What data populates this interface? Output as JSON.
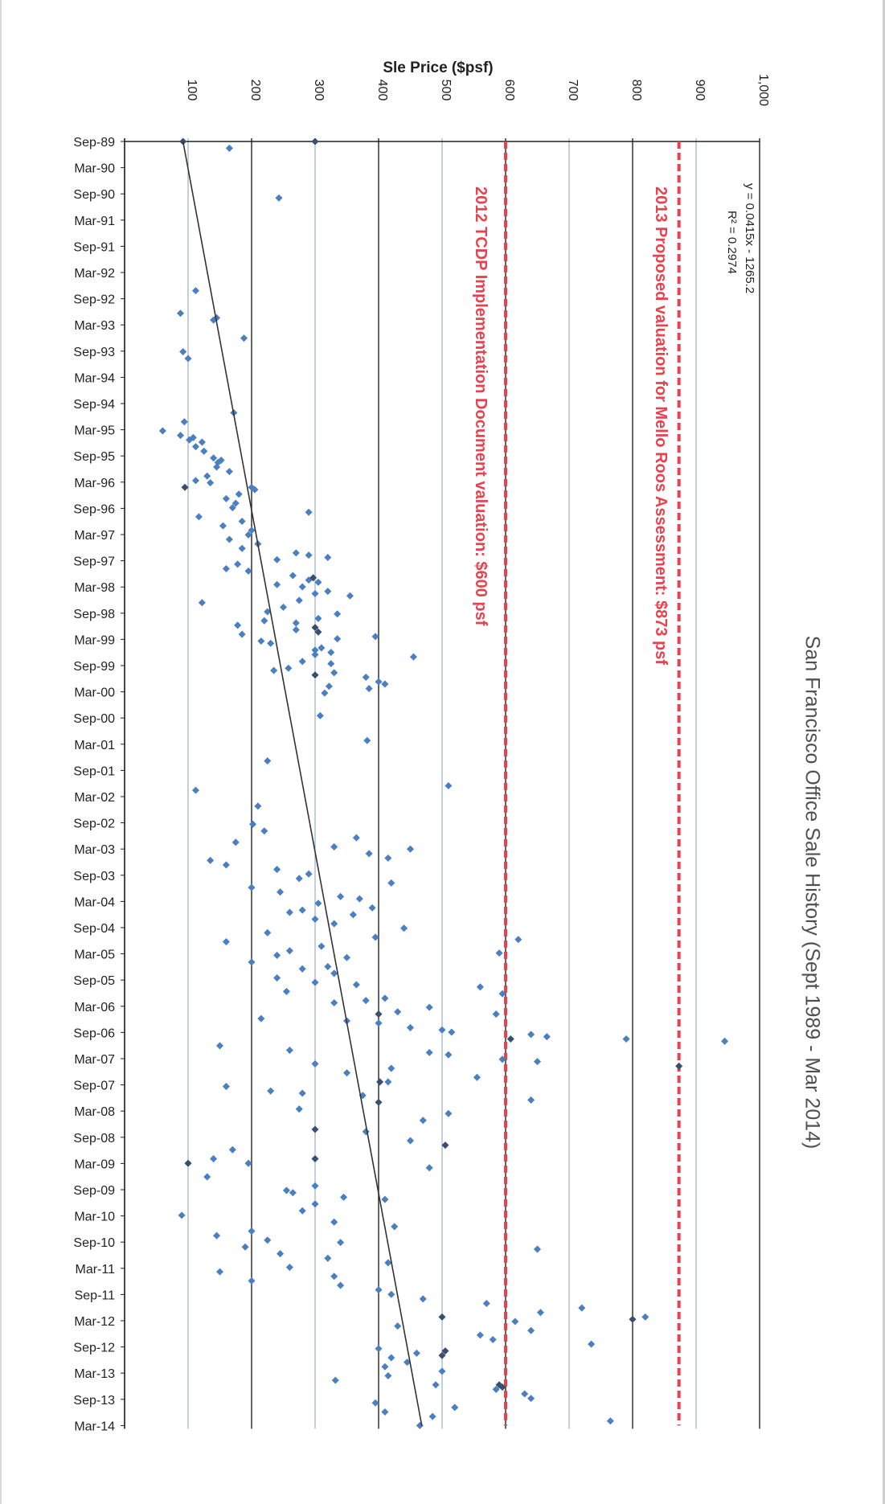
{
  "chart_data": {
    "type": "scatter",
    "title": "San Francisco Office Sale History (Sept 1989 - Mar 2014)",
    "ylabel": "Sle Price ($psf)",
    "xlabel": "",
    "ylim": [
      0,
      1000
    ],
    "yticks": [
      "",
      "100",
      "200",
      "300",
      "400",
      "500",
      "600",
      "700",
      "800",
      "900",
      "1,000"
    ],
    "ytick_values": [
      0,
      100,
      200,
      300,
      400,
      500,
      600,
      700,
      800,
      900,
      1000
    ],
    "categories": [
      "Sep-89",
      "Mar-90",
      "Sep-90",
      "Mar-91",
      "Sep-91",
      "Mar-92",
      "Sep-92",
      "Mar-93",
      "Sep-93",
      "Mar-94",
      "Sep-94",
      "Mar-95",
      "Sep-95",
      "Mar-96",
      "Sep-96",
      "Mar-97",
      "Sep-97",
      "Mar-98",
      "Sep-98",
      "Mar-99",
      "Sep-99",
      "Mar-00",
      "Sep-00",
      "Mar-01",
      "Sep-01",
      "Mar-02",
      "Sep-02",
      "Mar-03",
      "Sep-03",
      "Mar-04",
      "Sep-04",
      "Mar-05",
      "Sep-05",
      "Mar-06",
      "Sep-06",
      "Mar-07",
      "Sep-07",
      "Mar-08",
      "Sep-08",
      "Mar-09",
      "Sep-09",
      "Mar-10",
      "Sep-10",
      "Mar-11",
      "Sep-11",
      "Mar-12",
      "Sep-12",
      "Mar-13",
      "Sep-13",
      "Mar-14"
    ],
    "trendline": {
      "equation": "y = 0.0415x - 1265.2",
      "r_squared": "R² = 0.2974",
      "start": [
        0,
        92
      ],
      "end": [
        49,
        468
      ]
    },
    "reference_lines": [
      {
        "value": 600,
        "label": "2012 TCDP Implementation Document valuation: $600 psf",
        "color": "#e8424f"
      },
      {
        "value": 873,
        "label": "2013 Proposed valuation for Mello Roos Assessment: $873 psf",
        "color": "#e8424f"
      }
    ],
    "series": [
      {
        "color": "#4a7fc1",
        "points": [
          [
            0.3,
            165
          ],
          [
            2.5,
            243
          ],
          [
            6.6,
            112
          ],
          [
            7.6,
            88
          ],
          [
            7.8,
            145
          ],
          [
            7.9,
            140
          ],
          [
            8.7,
            188
          ],
          [
            9.3,
            92
          ],
          [
            9.6,
            100
          ],
          [
            12.0,
            172
          ],
          [
            12.4,
            94
          ],
          [
            12.8,
            60
          ],
          [
            13.0,
            88
          ],
          [
            13.1,
            108
          ],
          [
            13.2,
            102
          ],
          [
            13.3,
            122
          ],
          [
            13.5,
            112
          ],
          [
            13.7,
            125
          ],
          [
            14.0,
            140
          ],
          [
            14.1,
            152
          ],
          [
            14.2,
            147
          ],
          [
            14.4,
            145
          ],
          [
            14.6,
            165
          ],
          [
            14.8,
            130
          ],
          [
            15.0,
            112
          ],
          [
            15.1,
            135
          ],
          [
            15.3,
            200
          ],
          [
            15.4,
            205
          ],
          [
            15.6,
            180
          ],
          [
            15.8,
            160
          ],
          [
            16.0,
            175
          ],
          [
            16.2,
            170
          ],
          [
            16.4,
            290
          ],
          [
            16.6,
            117
          ],
          [
            16.8,
            185
          ],
          [
            17.0,
            155
          ],
          [
            17.2,
            200
          ],
          [
            17.4,
            195
          ],
          [
            17.6,
            165
          ],
          [
            17.8,
            210
          ],
          [
            18.0,
            185
          ],
          [
            18.2,
            270
          ],
          [
            18.3,
            290
          ],
          [
            18.4,
            320
          ],
          [
            18.5,
            240
          ],
          [
            18.7,
            178
          ],
          [
            18.9,
            160
          ],
          [
            19.0,
            195
          ],
          [
            19.2,
            265
          ],
          [
            19.4,
            290
          ],
          [
            19.5,
            305
          ],
          [
            19.6,
            240
          ],
          [
            19.7,
            280
          ],
          [
            19.9,
            320
          ],
          [
            20.0,
            300
          ],
          [
            20.1,
            355
          ],
          [
            20.3,
            275
          ],
          [
            20.4,
            122
          ],
          [
            20.6,
            250
          ],
          [
            20.8,
            225
          ],
          [
            20.9,
            335
          ],
          [
            21.1,
            305
          ],
          [
            21.2,
            220
          ],
          [
            21.3,
            270
          ],
          [
            21.4,
            178
          ],
          [
            21.6,
            270
          ],
          [
            21.8,
            185
          ],
          [
            21.9,
            395
          ],
          [
            22.0,
            335
          ],
          [
            22.1,
            215
          ],
          [
            22.2,
            230
          ],
          [
            22.4,
            310
          ],
          [
            22.5,
            300
          ],
          [
            22.6,
            325
          ],
          [
            22.7,
            300
          ],
          [
            22.8,
            455
          ],
          [
            23.0,
            280
          ],
          [
            23.1,
            325
          ],
          [
            23.3,
            258
          ],
          [
            23.4,
            235
          ],
          [
            23.5,
            330
          ],
          [
            23.7,
            380
          ],
          [
            23.9,
            400
          ],
          [
            24.0,
            410
          ],
          [
            24.1,
            322
          ],
          [
            24.2,
            385
          ],
          [
            24.4,
            315
          ],
          [
            25.4,
            308
          ],
          [
            26.5,
            382
          ],
          [
            27.4,
            225
          ],
          [
            28.5,
            510
          ],
          [
            28.7,
            112
          ],
          [
            29.4,
            210
          ],
          [
            30.2,
            202
          ],
          [
            30.5,
            220
          ],
          [
            30.8,
            365
          ],
          [
            31.0,
            175
          ],
          [
            31.2,
            330
          ],
          [
            31.3,
            450
          ],
          [
            31.5,
            385
          ],
          [
            31.7,
            415
          ],
          [
            31.8,
            135
          ],
          [
            32.0,
            160
          ],
          [
            32.2,
            240
          ],
          [
            32.4,
            290
          ],
          [
            32.6,
            275
          ],
          [
            32.8,
            420
          ],
          [
            33.0,
            200
          ],
          [
            33.2,
            245
          ],
          [
            33.4,
            340
          ],
          [
            33.5,
            370
          ],
          [
            33.7,
            305
          ],
          [
            33.9,
            390
          ],
          [
            34.0,
            280
          ],
          [
            34.1,
            260
          ],
          [
            34.2,
            360
          ],
          [
            34.4,
            300
          ],
          [
            34.6,
            330
          ],
          [
            34.8,
            440
          ],
          [
            35.0,
            225
          ],
          [
            35.2,
            395
          ],
          [
            35.3,
            620
          ],
          [
            35.4,
            160
          ],
          [
            35.6,
            310
          ],
          [
            35.8,
            260
          ],
          [
            35.9,
            590
          ],
          [
            36.0,
            240
          ],
          [
            36.1,
            350
          ],
          [
            36.3,
            200
          ],
          [
            36.5,
            320
          ],
          [
            36.6,
            280
          ],
          [
            36.8,
            330
          ],
          [
            37.0,
            240
          ],
          [
            37.2,
            300
          ],
          [
            37.3,
            365
          ],
          [
            37.4,
            560
          ],
          [
            37.6,
            255
          ],
          [
            37.7,
            595
          ],
          [
            37.9,
            410
          ],
          [
            38.0,
            380
          ],
          [
            38.1,
            330
          ],
          [
            38.3,
            480
          ],
          [
            38.5,
            430
          ],
          [
            38.6,
            585
          ],
          [
            38.8,
            215
          ],
          [
            38.9,
            350
          ],
          [
            39.0,
            400
          ],
          [
            39.2,
            450
          ],
          [
            39.3,
            500
          ],
          [
            39.4,
            515
          ],
          [
            39.5,
            640
          ],
          [
            39.6,
            665
          ],
          [
            39.7,
            790
          ],
          [
            39.8,
            945
          ],
          [
            40.0,
            150
          ],
          [
            40.2,
            260
          ],
          [
            40.3,
            480
          ],
          [
            40.4,
            510
          ],
          [
            40.6,
            595
          ],
          [
            40.7,
            650
          ],
          [
            40.8,
            300
          ],
          [
            41.0,
            420
          ],
          [
            41.2,
            350
          ],
          [
            41.4,
            555
          ],
          [
            41.6,
            415
          ],
          [
            41.8,
            160
          ],
          [
            42.0,
            230
          ],
          [
            42.1,
            280
          ],
          [
            42.2,
            375
          ],
          [
            42.4,
            640
          ],
          [
            42.8,
            275
          ],
          [
            43.0,
            510
          ],
          [
            43.3,
            470
          ],
          [
            43.8,
            380
          ],
          [
            44.2,
            450
          ],
          [
            44.6,
            170
          ],
          [
            45.0,
            140
          ],
          [
            45.2,
            195
          ],
          [
            45.4,
            480
          ],
          [
            45.8,
            130
          ],
          [
            46.2,
            300
          ],
          [
            46.4,
            255
          ],
          [
            46.5,
            265
          ],
          [
            46.7,
            345
          ],
          [
            46.8,
            410
          ],
          [
            47.0,
            300
          ],
          [
            47.3,
            280
          ],
          [
            47.5,
            90
          ],
          [
            47.8,
            330
          ],
          [
            48.0,
            425
          ],
          [
            48.2,
            200
          ],
          [
            48.4,
            145
          ],
          [
            48.6,
            225
          ],
          [
            48.7,
            340
          ],
          [
            48.9,
            190
          ],
          [
            49.0,
            650
          ],
          [
            49.2,
            245
          ],
          [
            49.4,
            320
          ],
          [
            49.6,
            415
          ],
          [
            49.8,
            260
          ],
          [
            50.0,
            150
          ],
          [
            50.2,
            330
          ],
          [
            50.4,
            200
          ],
          [
            50.6,
            340
          ],
          [
            50.8,
            400
          ],
          [
            51.0,
            420
          ],
          [
            51.2,
            470
          ],
          [
            51.4,
            570
          ],
          [
            51.6,
            720
          ],
          [
            51.8,
            655
          ],
          [
            52.0,
            820
          ],
          [
            52.2,
            615
          ],
          [
            52.4,
            430
          ],
          [
            52.6,
            640
          ],
          [
            52.8,
            560
          ],
          [
            53.0,
            580
          ],
          [
            53.2,
            735
          ],
          [
            53.4,
            400
          ],
          [
            53.6,
            460
          ],
          [
            53.8,
            420
          ],
          [
            54.0,
            445
          ],
          [
            54.2,
            410
          ],
          [
            54.4,
            500
          ],
          [
            54.6,
            415
          ],
          [
            54.8,
            332
          ],
          [
            55.0,
            490
          ],
          [
            55.2,
            585
          ],
          [
            55.4,
            630
          ],
          [
            55.6,
            640
          ],
          [
            55.8,
            395
          ],
          [
            56.0,
            520
          ],
          [
            56.2,
            410
          ],
          [
            56.4,
            485
          ],
          [
            56.6,
            765
          ],
          [
            56.8,
            465
          ]
        ]
      },
      {
        "color": "#3a4f6e",
        "points": [
          [
            0.0,
            92
          ],
          [
            0.0,
            300
          ],
          [
            15.3,
            95
          ],
          [
            19.3,
            297
          ],
          [
            21.5,
            300
          ],
          [
            21.7,
            305
          ],
          [
            23.6,
            300
          ],
          [
            38.6,
            400
          ],
          [
            41.6,
            402
          ],
          [
            43.7,
            300
          ],
          [
            44.4,
            505
          ],
          [
            45.0,
            300
          ],
          [
            45.2,
            100
          ],
          [
            52.0,
            500
          ],
          [
            52.1,
            800
          ],
          [
            53.5,
            505
          ],
          [
            53.7,
            500
          ],
          [
            55.0,
            590
          ],
          [
            55.1,
            595
          ],
          [
            39.7,
            608
          ],
          [
            40.9,
            873
          ],
          [
            42.5,
            400
          ]
        ]
      }
    ]
  }
}
